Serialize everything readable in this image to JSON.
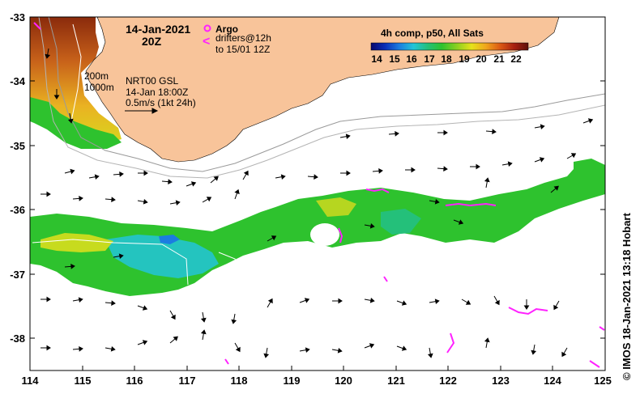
{
  "map": {
    "date_title": "14-Jan-2021",
    "time_title": "20Z",
    "legend": {
      "argo_label": "Argo",
      "drifter_line1": "drifters@12h",
      "drifter_line2": "to 15/01 12Z",
      "drifter_glyph": "<"
    },
    "info": {
      "contour_200": "200m",
      "contour_1000": "1000m",
      "product": "NRT00 GSL",
      "product_time": "14-Jan 18:00Z",
      "scale_text": "0.5m/s (1kt 24h)"
    },
    "colorbar": {
      "title": "4h comp, p50, All Sats",
      "ticks": [
        "14",
        "15",
        "16",
        "17",
        "18",
        "19",
        "20",
        "21",
        "22"
      ],
      "min": 13.5,
      "max": 22.5,
      "colors": [
        "#08086e",
        "#0a2fb8",
        "#1b7de0",
        "#22c4d8",
        "#24c07a",
        "#2ec22e",
        "#8fd120",
        "#e6e21a",
        "#f0a61c",
        "#dc5a14",
        "#a82010",
        "#5e1008"
      ]
    },
    "x_axis": {
      "min": 114,
      "max": 125,
      "ticks": [
        "114",
        "115",
        "116",
        "117",
        "118",
        "119",
        "120",
        "121",
        "122",
        "123",
        "124",
        "125"
      ]
    },
    "y_axis": {
      "min": -38.5,
      "max": -33,
      "ticks": [
        "-33",
        "-34",
        "-35",
        "-36",
        "-37",
        "-38"
      ]
    },
    "credit": "© IMOS 18-Jan-2021 13:18 Hobart",
    "colors": {
      "land": "#f8c49a",
      "frame": "#000000",
      "argo": "#ff22ff",
      "drifter": "#ff22ff"
    }
  }
}
